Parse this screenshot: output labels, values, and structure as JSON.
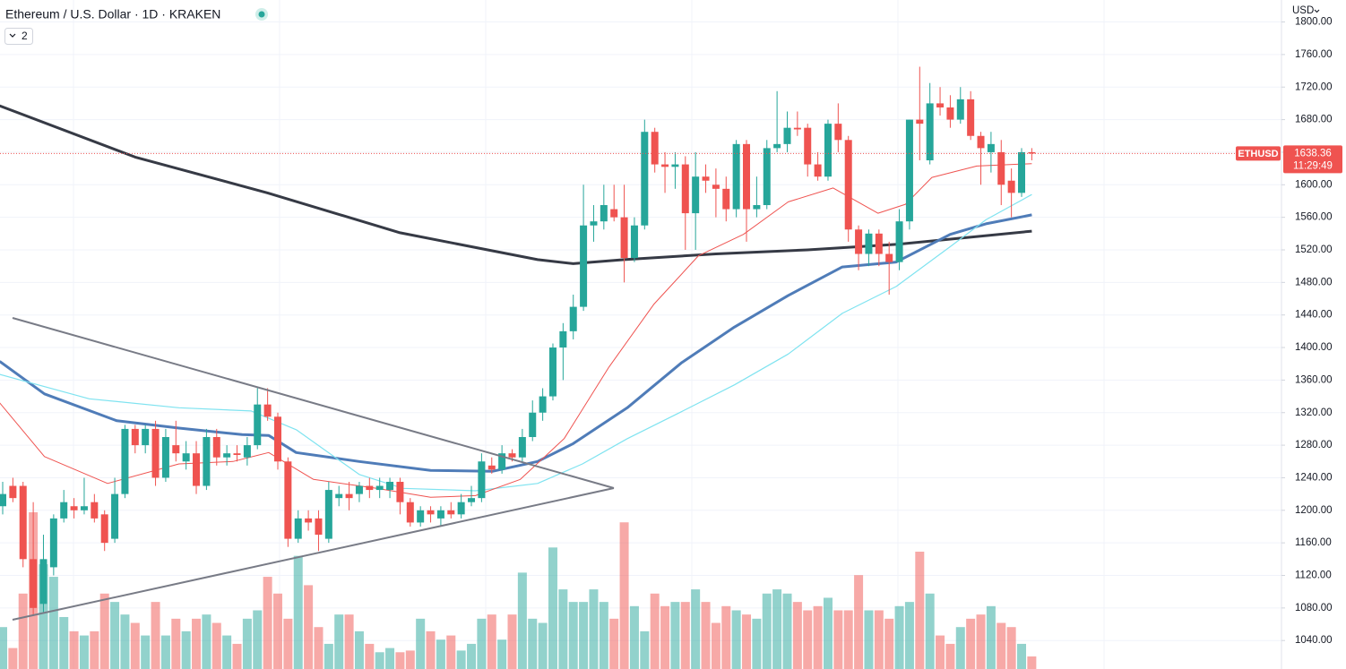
{
  "chart_data": {
    "type": "candlestick",
    "title": "Ethereum / U.S. Dollar · 1D · KRAKEN",
    "indicator_count": "2",
    "currency": "USD",
    "symbol": "ETHUSD",
    "countdown": "11:29:49",
    "up_color": "#26a69a",
    "down_color": "#ef5350",
    "ylim": [
      1005,
      1827
    ],
    "yticks": [
      {
        "value": 1040,
        "label": "1040.00"
      },
      {
        "value": 1080,
        "label": "1080.00"
      },
      {
        "value": 1120,
        "label": "1120.00"
      },
      {
        "value": 1160,
        "label": "1160.00"
      },
      {
        "value": 1200,
        "label": "1200.00"
      },
      {
        "value": 1240,
        "label": "1240.00"
      },
      {
        "value": 1280,
        "label": "1280.00"
      },
      {
        "value": 1320,
        "label": "1320.00"
      },
      {
        "value": 1360,
        "label": "1360.00"
      },
      {
        "value": 1400,
        "label": "1400.00"
      },
      {
        "value": 1440,
        "label": "1440.00"
      },
      {
        "value": 1480,
        "label": "1480.00"
      },
      {
        "value": 1520,
        "label": "1520.00"
      },
      {
        "value": 1560,
        "label": "1560.00"
      },
      {
        "value": 1600,
        "label": "1600.00"
      },
      {
        "value": 1640,
        "label": "1640.00"
      },
      {
        "value": 1680,
        "label": "1680.00"
      },
      {
        "value": 1720,
        "label": "1720.00"
      },
      {
        "value": 1760,
        "label": "1760.00"
      },
      {
        "value": 1800,
        "label": "1800.00"
      }
    ],
    "grid": true,
    "open": [
      1205,
      1230,
      1230,
      1140,
      1085,
      1130,
      1190,
      1205,
      1200,
      1210,
      1195,
      1165,
      1220,
      1300,
      1280,
      1300,
      1240,
      1280,
      1260,
      1270,
      1230,
      1290,
      1265,
      1270,
      1265,
      1280,
      1330,
      1315,
      1260,
      1165,
      1190,
      1190,
      1165,
      1215,
      1220,
      1220,
      1230,
      1225,
      1225,
      1235,
      1210,
      1185,
      1200,
      1190,
      1200,
      1195,
      1210,
      1215,
      1255,
      1250,
      1270,
      1265,
      1290,
      1320,
      1340,
      1400,
      1420,
      1450,
      1550,
      1555,
      1570,
      1560,
      1510,
      1550,
      1665,
      1625,
      1622,
      1625,
      1565,
      1610,
      1600,
      1595,
      1570,
      1650,
      1570,
      1575,
      1645,
      1650,
      1670,
      1670,
      1625,
      1610,
      1675,
      1655,
      1545,
      1515,
      1540,
      1515,
      1505,
      1555,
      1680,
      1630,
      1700,
      1695,
      1680,
      1705,
      1660,
      1640,
      1640,
      1605,
      1590,
      1640
    ],
    "high": [
      1235,
      1240,
      1235,
      1210,
      1170,
      1195,
      1225,
      1215,
      1240,
      1220,
      1200,
      1240,
      1305,
      1305,
      1305,
      1310,
      1300,
      1310,
      1285,
      1285,
      1300,
      1300,
      1280,
      1280,
      1290,
      1350,
      1350,
      1320,
      1265,
      1200,
      1200,
      1200,
      1235,
      1230,
      1235,
      1235,
      1240,
      1240,
      1240,
      1240,
      1215,
      1205,
      1205,
      1205,
      1210,
      1220,
      1230,
      1270,
      1265,
      1280,
      1275,
      1300,
      1335,
      1350,
      1405,
      1430,
      1465,
      1600,
      1575,
      1600,
      1600,
      1600,
      1560,
      1680,
      1670,
      1640,
      1640,
      1635,
      1640,
      1625,
      1620,
      1610,
      1655,
      1655,
      1610,
      1655,
      1715,
      1690,
      1690,
      1675,
      1640,
      1680,
      1700,
      1660,
      1550,
      1545,
      1545,
      1530,
      1570,
      1680,
      1745,
      1725,
      1720,
      1710,
      1720,
      1715,
      1665,
      1665,
      1655,
      1620,
      1645,
      1645
    ],
    "low": [
      1195,
      1210,
      1130,
      1070,
      1075,
      1120,
      1185,
      1190,
      1195,
      1185,
      1150,
      1160,
      1215,
      1270,
      1270,
      1230,
      1235,
      1260,
      1250,
      1220,
      1225,
      1255,
      1255,
      1260,
      1255,
      1275,
      1310,
      1250,
      1155,
      1160,
      1175,
      1150,
      1160,
      1205,
      1200,
      1210,
      1215,
      1215,
      1215,
      1195,
      1180,
      1180,
      1185,
      1180,
      1190,
      1190,
      1205,
      1210,
      1245,
      1245,
      1260,
      1260,
      1285,
      1310,
      1335,
      1360,
      1410,
      1445,
      1530,
      1545,
      1555,
      1480,
      1505,
      1545,
      1615,
      1590,
      1595,
      1520,
      1520,
      1590,
      1560,
      1555,
      1560,
      1530,
      1560,
      1570,
      1640,
      1640,
      1660,
      1610,
      1605,
      1605,
      1640,
      1530,
      1495,
      1500,
      1500,
      1465,
      1495,
      1545,
      1630,
      1625,
      1685,
      1670,
      1675,
      1655,
      1600,
      1615,
      1575,
      1560,
      1585,
      1630
    ],
    "close": [
      1220,
      1215,
      1140,
      1080,
      1140,
      1190,
      1210,
      1200,
      1205,
      1190,
      1160,
      1220,
      1300,
      1280,
      1300,
      1240,
      1290,
      1270,
      1270,
      1230,
      1290,
      1265,
      1270,
      1268,
      1280,
      1330,
      1315,
      1260,
      1165,
      1190,
      1185,
      1170,
      1225,
      1220,
      1215,
      1230,
      1225,
      1230,
      1235,
      1210,
      1185,
      1200,
      1195,
      1200,
      1195,
      1210,
      1215,
      1260,
      1250,
      1270,
      1265,
      1290,
      1320,
      1340,
      1400,
      1420,
      1450,
      1550,
      1555,
      1575,
      1560,
      1510,
      1550,
      1665,
      1625,
      1622,
      1625,
      1565,
      1610,
      1605,
      1595,
      1570,
      1650,
      1570,
      1575,
      1645,
      1650,
      1670,
      1668,
      1625,
      1610,
      1675,
      1655,
      1545,
      1515,
      1540,
      1515,
      1505,
      1555,
      1680,
      1675,
      1700,
      1695,
      1680,
      1705,
      1660,
      1645,
      1650,
      1600,
      1590,
      1640,
      1638.36
    ],
    "volume": [
      50,
      25,
      90,
      187,
      125,
      110,
      62,
      45,
      40,
      45,
      90,
      80,
      65,
      55,
      40,
      80,
      40,
      60,
      45,
      60,
      65,
      55,
      40,
      30,
      60,
      70,
      110,
      90,
      60,
      135,
      100,
      50,
      30,
      65,
      65,
      45,
      30,
      20,
      25,
      20,
      22,
      60,
      45,
      35,
      40,
      22,
      30,
      60,
      65,
      35,
      65,
      115,
      60,
      55,
      145,
      95,
      80,
      80,
      95,
      80,
      60,
      175,
      75,
      45,
      90,
      75,
      80,
      80,
      95,
      80,
      55,
      75,
      70,
      65,
      60,
      90,
      95,
      90,
      80,
      70,
      75,
      85,
      70,
      70,
      112,
      70,
      70,
      60,
      75,
      80,
      140,
      90,
      40,
      30,
      50,
      60,
      65,
      75,
      55,
      50,
      30,
      15
    ],
    "lines": [
      {
        "color": "#363a45",
        "width": 3,
        "x": [
          -0.3,
          13,
          26,
          39,
          52.5,
          56,
          61,
          70,
          79,
          88,
          101
        ],
        "values": [
          1697,
          1634,
          1590,
          1541,
          1508,
          1503,
          1508,
          1515,
          1520,
          1527,
          1543
        ]
      },
      {
        "color": "#4f7cb8",
        "width": 3,
        "x": [
          -0.3,
          4.1,
          11.2,
          17.3,
          23.5,
          26.1,
          28.8,
          35,
          42,
          48.1,
          52.5,
          56,
          61.3,
          66.6,
          71.8,
          77.1,
          82.4,
          87.7,
          93,
          96.5,
          101
        ],
        "values": [
          1383,
          1343,
          1310,
          1301,
          1293,
          1292,
          1271,
          1260,
          1249,
          1248,
          1260,
          1282,
          1326,
          1381,
          1425,
          1464,
          1499,
          1505,
          1539,
          1552,
          1563
        ]
      },
      {
        "color": "#7fe3f0",
        "width": 1.2,
        "x": [
          -0.3,
          8.5,
          17.3,
          24.4,
          28.8,
          35,
          39.3,
          46.4,
          52.5,
          56.9,
          61.3,
          66.6,
          71.8,
          77.1,
          82.4,
          87.7,
          93,
          96.5,
          101
        ],
        "values": [
          1367,
          1337,
          1326,
          1322,
          1299,
          1244,
          1227,
          1224,
          1233,
          1257,
          1288,
          1321,
          1354,
          1392,
          1442,
          1475,
          1524,
          1557,
          1588
        ]
      },
      {
        "color": "#ef5350",
        "width": 1,
        "x": [
          -0.3,
          4.1,
          10.3,
          17.3,
          22.6,
          26.1,
          30.5,
          36.7,
          42,
          46.4,
          50.8,
          55.1,
          59.5,
          63.9,
          68.3,
          72.7,
          77.1,
          81.5,
          85.9,
          88.6,
          91.2,
          95.6,
          101
        ],
        "values": [
          1332,
          1266,
          1233,
          1257,
          1260,
          1271,
          1238,
          1227,
          1216,
          1218,
          1238,
          1288,
          1376,
          1453,
          1513,
          1539,
          1579,
          1596,
          1565,
          1576,
          1609,
          1623,
          1626
        ]
      }
    ]
  }
}
